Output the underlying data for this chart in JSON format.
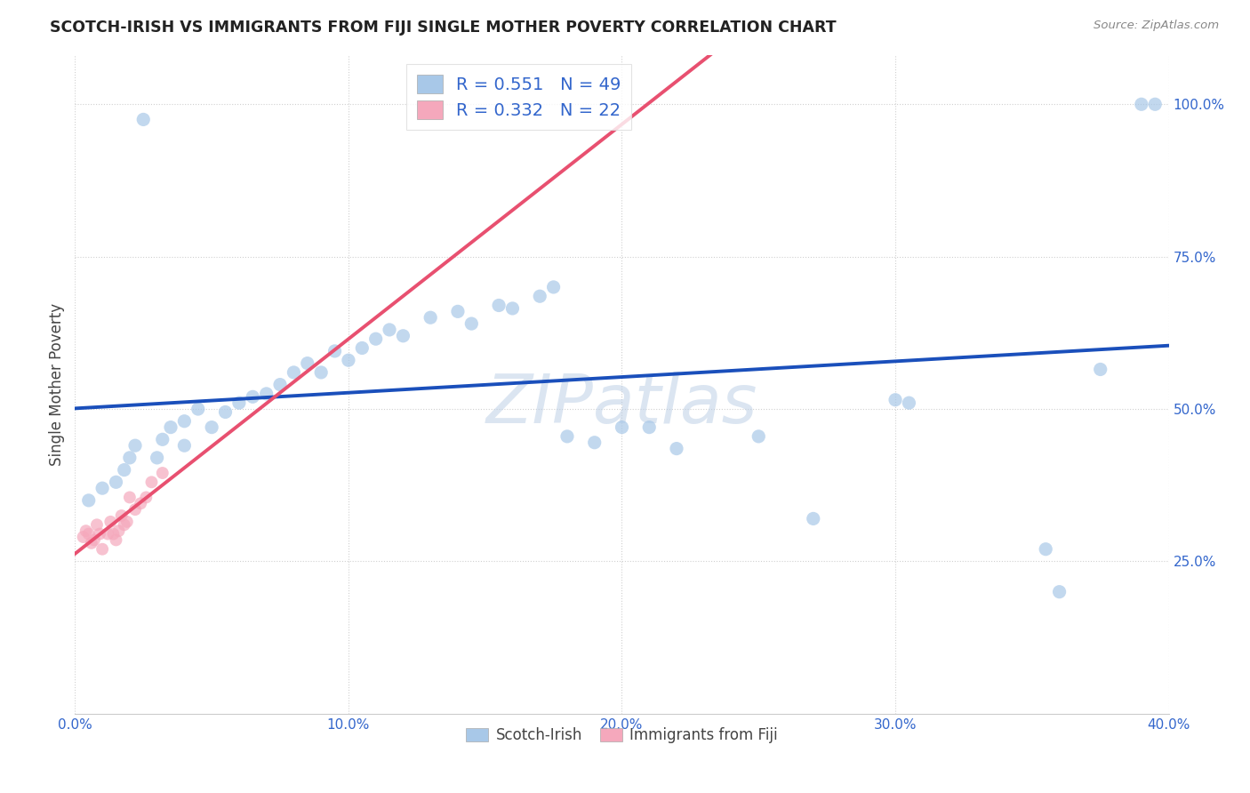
{
  "title": "SCOTCH-IRISH VS IMMIGRANTS FROM FIJI SINGLE MOTHER POVERTY CORRELATION CHART",
  "source": "Source: ZipAtlas.com",
  "ylabel": "Single Mother Poverty",
  "legend_label1": "Scotch-Irish",
  "legend_label2": "Immigrants from Fiji",
  "r1": "0.551",
  "n1": "49",
  "r2": "0.332",
  "n2": "22",
  "xmin": 0.0,
  "xmax": 0.4,
  "ymin": 0.0,
  "ymax": 1.08,
  "xtick_labels": [
    "0.0%",
    "10.0%",
    "20.0%",
    "30.0%",
    "40.0%"
  ],
  "xtick_vals": [
    0.0,
    0.1,
    0.2,
    0.3,
    0.4
  ],
  "ytick_labels": [
    "25.0%",
    "50.0%",
    "75.0%",
    "100.0%"
  ],
  "ytick_vals": [
    0.25,
    0.5,
    0.75,
    1.0
  ],
  "blue_scatter_color": "#a8c8e8",
  "pink_scatter_color": "#f5a8bc",
  "blue_line_color": "#1a4fbb",
  "pink_line_color": "#e85070",
  "blue_dash_color": "#c8d0e8",
  "pink_dash_color": "#f0b8c8",
  "watermark": "ZIPatlas",
  "scotch_irish_x": [
    0.005,
    0.01,
    0.015,
    0.018,
    0.02,
    0.022,
    0.025,
    0.03,
    0.032,
    0.035,
    0.04,
    0.04,
    0.045,
    0.05,
    0.055,
    0.06,
    0.065,
    0.07,
    0.075,
    0.08,
    0.085,
    0.09,
    0.095,
    0.1,
    0.105,
    0.11,
    0.115,
    0.12,
    0.13,
    0.14,
    0.145,
    0.155,
    0.16,
    0.17,
    0.175,
    0.18,
    0.19,
    0.2,
    0.21,
    0.22,
    0.25,
    0.27,
    0.3,
    0.305,
    0.355,
    0.36,
    0.375,
    0.39,
    0.395
  ],
  "scotch_irish_y": [
    0.35,
    0.37,
    0.38,
    0.4,
    0.42,
    0.44,
    0.975,
    0.42,
    0.45,
    0.47,
    0.44,
    0.48,
    0.5,
    0.47,
    0.495,
    0.51,
    0.52,
    0.525,
    0.54,
    0.56,
    0.575,
    0.56,
    0.595,
    0.58,
    0.6,
    0.615,
    0.63,
    0.62,
    0.65,
    0.66,
    0.64,
    0.67,
    0.665,
    0.685,
    0.7,
    0.455,
    0.445,
    0.47,
    0.47,
    0.435,
    0.455,
    0.32,
    0.515,
    0.51,
    0.27,
    0.2,
    0.565,
    1.0,
    1.0
  ],
  "fiji_x": [
    0.003,
    0.004,
    0.005,
    0.006,
    0.007,
    0.008,
    0.009,
    0.01,
    0.012,
    0.013,
    0.014,
    0.015,
    0.016,
    0.017,
    0.018,
    0.019,
    0.02,
    0.022,
    0.024,
    0.026,
    0.028,
    0.032
  ],
  "fiji_y": [
    0.29,
    0.3,
    0.295,
    0.28,
    0.285,
    0.31,
    0.295,
    0.27,
    0.295,
    0.315,
    0.295,
    0.285,
    0.3,
    0.325,
    0.31,
    0.315,
    0.355,
    0.335,
    0.345,
    0.355,
    0.38,
    0.395
  ],
  "scotch_size": 120,
  "fiji_size": 100,
  "bg_color": "#ffffff",
  "grid_color": "#d0d0d0",
  "tick_color": "#3366cc",
  "title_color": "#222222",
  "source_color": "#888888",
  "ylabel_color": "#444444"
}
